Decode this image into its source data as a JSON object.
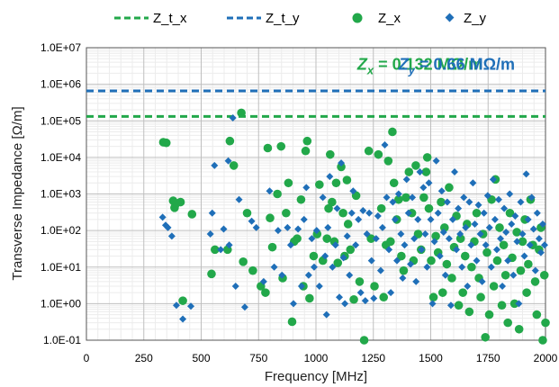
{
  "chart_data": {
    "type": "scatter",
    "title": "",
    "xlabel": "Frequency [MHz]",
    "ylabel": "Transverse Impedance [Ω/m]",
    "xlim": [
      0,
      2000
    ],
    "xticks": [
      0,
      250,
      500,
      750,
      1000,
      1250,
      1500,
      1750,
      2000
    ],
    "xtick_labels": [
      "0",
      "250",
      "500",
      "750",
      "1000",
      "1250",
      "1500",
      "1750",
      "2000"
    ],
    "y_scale": "log",
    "ylim": [
      0.1,
      10000000
    ],
    "yticks": [
      0.1,
      1,
      10,
      100,
      1000,
      10000,
      100000,
      1000000,
      10000000
    ],
    "ytick_labels": [
      "1.0E-01",
      "1.0E+00",
      "1.0E+01",
      "1.0E+02",
      "1.0E+03",
      "1.0E+04",
      "1.0E+05",
      "1.0E+06",
      "1.0E+07"
    ],
    "grid": true,
    "legend_position": "top",
    "legend": [
      {
        "label": "Z_t_x",
        "kind": "dashed-line",
        "color": "#22a84a"
      },
      {
        "label": "Z_t_y",
        "kind": "dashed-line",
        "color": "#1f6fb8"
      },
      {
        "label": "Z_x",
        "kind": "circle",
        "color": "#22a84a"
      },
      {
        "label": "Z_y",
        "kind": "diamond",
        "color": "#1f6fb8"
      }
    ],
    "threshold_lines": [
      {
        "name": "Z_t_x",
        "value": 132000,
        "color": "#22a84a"
      },
      {
        "name": "Z_t_y",
        "value": 660000,
        "color": "#1f6fb8"
      }
    ],
    "annotations": [
      {
        "sym": "Z",
        "sub": "x",
        "rest": " = 0.132 MΩ/m",
        "color": "#22a84a",
        "anchor_x": 1180,
        "anchor_y": 2500000
      },
      {
        "sym": "Z",
        "sub": "y",
        "rest": " = 0.66 MΩ/m",
        "color": "#1f6fb8",
        "anchor_x": 1360,
        "anchor_y": 2500000
      }
    ],
    "series": [
      {
        "name": "Z_x",
        "marker": "circle",
        "color": "#22a84a",
        "points": [
          [
            335,
            26000
          ],
          [
            348,
            25000
          ],
          [
            378,
            650
          ],
          [
            384,
            420
          ],
          [
            388,
            520
          ],
          [
            410,
            600
          ],
          [
            420,
            1.2
          ],
          [
            460,
            280
          ],
          [
            545,
            6.5
          ],
          [
            560,
            30
          ],
          [
            615,
            30
          ],
          [
            625,
            28000
          ],
          [
            642,
            6000
          ],
          [
            675,
            165000
          ],
          [
            683,
            14
          ],
          [
            700,
            300
          ],
          [
            725,
            8
          ],
          [
            760,
            3
          ],
          [
            780,
            2
          ],
          [
            790,
            18000
          ],
          [
            800,
            220
          ],
          [
            810,
            35
          ],
          [
            832,
            1000
          ],
          [
            848,
            20000
          ],
          [
            855,
            5
          ],
          [
            870,
            300
          ],
          [
            880,
            2000
          ],
          [
            896,
            0.32
          ],
          [
            905,
            50
          ],
          [
            918,
            60
          ],
          [
            935,
            700
          ],
          [
            945,
            3
          ],
          [
            955,
            15000
          ],
          [
            962,
            28000
          ],
          [
            972,
            1.4
          ],
          [
            990,
            20
          ],
          [
            1005,
            80
          ],
          [
            1015,
            1800
          ],
          [
            1030,
            15
          ],
          [
            1048,
            60
          ],
          [
            1055,
            400
          ],
          [
            1062,
            12000
          ],
          [
            1070,
            600
          ],
          [
            1080,
            50
          ],
          [
            1088,
            2000
          ],
          [
            1095,
            13
          ],
          [
            1110,
            5500
          ],
          [
            1118,
            300
          ],
          [
            1125,
            20
          ],
          [
            1135,
            2400
          ],
          [
            1140,
            150
          ],
          [
            1150,
            30
          ],
          [
            1165,
            1.3
          ],
          [
            1175,
            900
          ],
          [
            1190,
            4
          ],
          [
            1210,
            0.1
          ],
          [
            1230,
            15000
          ],
          [
            1240,
            60
          ],
          [
            1255,
            3
          ],
          [
            1272,
            12000
          ],
          [
            1285,
            400
          ],
          [
            1295,
            1.5
          ],
          [
            1305,
            40
          ],
          [
            1315,
            8000
          ],
          [
            1325,
            50
          ],
          [
            1333,
            50000
          ],
          [
            1340,
            2000
          ],
          [
            1352,
            200
          ],
          [
            1360,
            700
          ],
          [
            1372,
            20
          ],
          [
            1382,
            8
          ],
          [
            1392,
            800
          ],
          [
            1405,
            4000
          ],
          [
            1418,
            300
          ],
          [
            1425,
            15
          ],
          [
            1435,
            6000
          ],
          [
            1445,
            80
          ],
          [
            1458,
            30
          ],
          [
            1470,
            800
          ],
          [
            1480,
            4000
          ],
          [
            1485,
            10000
          ],
          [
            1492,
            400
          ],
          [
            1502,
            15
          ],
          [
            1512,
            1.5
          ],
          [
            1522,
            70
          ],
          [
            1532,
            25
          ],
          [
            1545,
            600
          ],
          [
            1552,
            2
          ],
          [
            1560,
            120
          ],
          [
            1570,
            12
          ],
          [
            1580,
            1500
          ],
          [
            1592,
            5
          ],
          [
            1602,
            35
          ],
          [
            1612,
            250
          ],
          [
            1622,
            0.9
          ],
          [
            1630,
            60
          ],
          [
            1640,
            2
          ],
          [
            1650,
            20
          ],
          [
            1658,
            150
          ],
          [
            1668,
            0.6
          ],
          [
            1678,
            10
          ],
          [
            1690,
            50
          ],
          [
            1700,
            300
          ],
          [
            1710,
            5
          ],
          [
            1718,
            1.5
          ],
          [
            1728,
            80
          ],
          [
            1738,
            0.12
          ],
          [
            1745,
            25
          ],
          [
            1755,
            0.5
          ],
          [
            1765,
            700
          ],
          [
            1775,
            3
          ],
          [
            1782,
            2500
          ],
          [
            1790,
            15
          ],
          [
            1800,
            120
          ],
          [
            1810,
            0.9
          ],
          [
            1818,
            40
          ],
          [
            1826,
            6
          ],
          [
            1836,
            0.3
          ],
          [
            1845,
            300
          ],
          [
            1855,
            18
          ],
          [
            1865,
            1
          ],
          [
            1875,
            90
          ],
          [
            1885,
            0.2
          ],
          [
            1892,
            8
          ],
          [
            1900,
            50
          ],
          [
            1910,
            200
          ],
          [
            1918,
            2
          ],
          [
            1925,
            12
          ],
          [
            1935,
            700
          ],
          [
            1945,
            40
          ],
          [
            1955,
            4
          ],
          [
            1962,
            0.5
          ],
          [
            1972,
            30
          ],
          [
            1980,
            120
          ],
          [
            1988,
            0.1
          ],
          [
            1995,
            6
          ],
          [
            2000,
            0.3
          ]
        ]
      },
      {
        "name": "Z_y",
        "marker": "diamond",
        "color": "#1f6fb8",
        "points": [
          [
            332,
            230
          ],
          [
            345,
            140
          ],
          [
            355,
            120
          ],
          [
            372,
            70
          ],
          [
            392,
            0.9
          ],
          [
            420,
            0.38
          ],
          [
            455,
            0.85
          ],
          [
            540,
            80
          ],
          [
            548,
            300
          ],
          [
            558,
            6000
          ],
          [
            585,
            30
          ],
          [
            598,
            110
          ],
          [
            618,
            8000
          ],
          [
            622,
            40
          ],
          [
            638,
            120000
          ],
          [
            650,
            3
          ],
          [
            665,
            700
          ],
          [
            690,
            0.8
          ],
          [
            720,
            180
          ],
          [
            740,
            120
          ],
          [
            772,
            4
          ],
          [
            798,
            1200
          ],
          [
            818,
            10
          ],
          [
            835,
            100
          ],
          [
            852,
            6
          ],
          [
            876,
            120
          ],
          [
            890,
            40
          ],
          [
            902,
            1
          ],
          [
            922,
            110
          ],
          [
            937,
            3
          ],
          [
            948,
            200
          ],
          [
            958,
            1500
          ],
          [
            968,
            6
          ],
          [
            982,
            60
          ],
          [
            992,
            10
          ],
          [
            1003,
            100
          ],
          [
            1015,
            3
          ],
          [
            1030,
            800
          ],
          [
            1040,
            20
          ],
          [
            1046,
            0.5
          ],
          [
            1052,
            120
          ],
          [
            1060,
            3000
          ],
          [
            1072,
            10
          ],
          [
            1085,
            40
          ],
          [
            1092,
            400
          ],
          [
            1102,
            1.5
          ],
          [
            1110,
            7000
          ],
          [
            1120,
            18
          ],
          [
            1126,
            1
          ],
          [
            1136,
            70
          ],
          [
            1146,
            6
          ],
          [
            1156,
            300
          ],
          [
            1162,
            1200
          ],
          [
            1173,
            40
          ],
          [
            1185,
            200
          ],
          [
            1195,
            2
          ],
          [
            1205,
            350
          ],
          [
            1215,
            1.2
          ],
          [
            1222,
            80
          ],
          [
            1232,
            300
          ],
          [
            1242,
            15
          ],
          [
            1252,
            1.4
          ],
          [
            1262,
            60
          ],
          [
            1270,
            250
          ],
          [
            1282,
            8
          ],
          [
            1290,
            120
          ],
          [
            1300,
            22000
          ],
          [
            1308,
            800
          ],
          [
            1318,
            30
          ],
          [
            1326,
            2
          ],
          [
            1335,
            600
          ],
          [
            1345,
            200
          ],
          [
            1353,
            15
          ],
          [
            1360,
            1000
          ],
          [
            1370,
            80
          ],
          [
            1378,
            5
          ],
          [
            1386,
            40
          ],
          [
            1395,
            2500
          ],
          [
            1403,
            300
          ],
          [
            1412,
            12
          ],
          [
            1420,
            800
          ],
          [
            1428,
            60
          ],
          [
            1436,
            4
          ],
          [
            1444,
            200
          ],
          [
            1453,
            4000
          ],
          [
            1460,
            30
          ],
          [
            1468,
            1500
          ],
          [
            1476,
            80
          ],
          [
            1484,
            10
          ],
          [
            1492,
            2000
          ],
          [
            1500,
            200
          ],
          [
            1508,
            1
          ],
          [
            1516,
            50
          ],
          [
            1524,
            8000
          ],
          [
            1532,
            300
          ],
          [
            1540,
            20
          ],
          [
            1548,
            1200
          ],
          [
            1556,
            90
          ],
          [
            1564,
            6
          ],
          [
            1572,
            600
          ],
          [
            1580,
            60
          ],
          [
            1588,
            0.9
          ],
          [
            1596,
            200
          ],
          [
            1604,
            4000
          ],
          [
            1612,
            30
          ],
          [
            1620,
            400
          ],
          [
            1628,
            80
          ],
          [
            1636,
            10
          ],
          [
            1644,
            800
          ],
          [
            1652,
            120
          ],
          [
            1660,
            3
          ],
          [
            1668,
            600
          ],
          [
            1676,
            40
          ],
          [
            1684,
            2000
          ],
          [
            1692,
            150
          ],
          [
            1700,
            15
          ],
          [
            1708,
            500
          ],
          [
            1716,
            80
          ],
          [
            1724,
            4
          ],
          [
            1732,
            300
          ],
          [
            1740,
            40
          ],
          [
            1748,
            900
          ],
          [
            1756,
            120
          ],
          [
            1764,
            10
          ],
          [
            1772,
            2500
          ],
          [
            1780,
            200
          ],
          [
            1788,
            30
          ],
          [
            1796,
            700
          ],
          [
            1804,
            60
          ],
          [
            1812,
            3
          ],
          [
            1820,
            400
          ],
          [
            1828,
            90
          ],
          [
            1836,
            15
          ],
          [
            1844,
            1000
          ],
          [
            1852,
            150
          ],
          [
            1860,
            6
          ],
          [
            1868,
            250
          ],
          [
            1876,
            50
          ],
          [
            1884,
            1
          ],
          [
            1892,
            600
          ],
          [
            1900,
            80
          ],
          [
            1908,
            20
          ],
          [
            1916,
            3500
          ],
          [
            1924,
            200
          ],
          [
            1932,
            40
          ],
          [
            1940,
            800
          ],
          [
            1948,
            110
          ],
          [
            1956,
            8
          ],
          [
            1964,
            300
          ],
          [
            1972,
            60
          ],
          [
            1980,
            25
          ],
          [
            1988,
            150
          ],
          [
            1996,
            40
          ]
        ]
      }
    ]
  }
}
